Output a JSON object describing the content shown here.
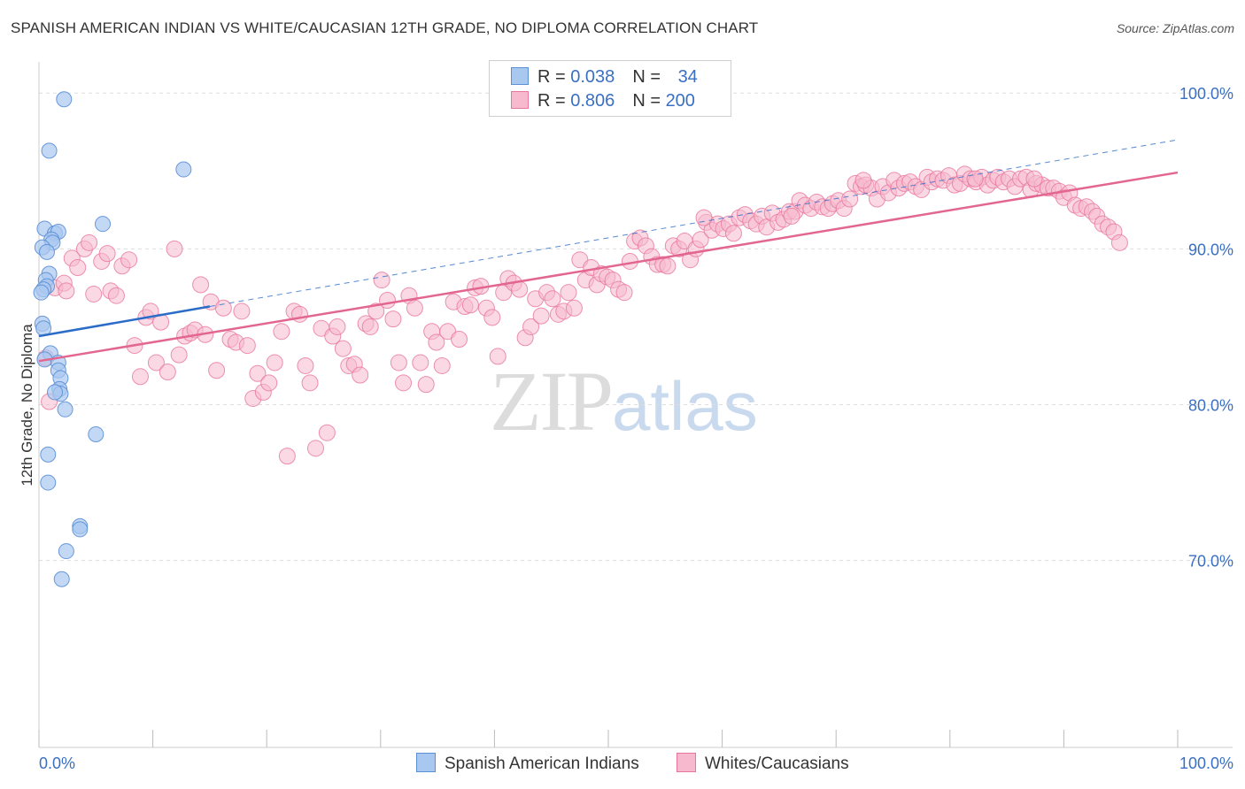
{
  "header": {
    "title": "SPANISH AMERICAN INDIAN VS WHITE/CAUCASIAN 12TH GRADE, NO DIPLOMA CORRELATION CHART",
    "source": "Source: ZipAtlas.com"
  },
  "legend": {
    "rows": [
      {
        "r_label": "R = ",
        "r_value": "0.038",
        "n_label": "N = ",
        "n_value": "34"
      },
      {
        "r_label": "R = ",
        "r_value": "0.806",
        "n_label": "N = ",
        "n_value": "200"
      }
    ],
    "bottom": [
      "Spanish American Indians",
      "Whites/Caucasians"
    ]
  },
  "watermark": {
    "zip": "ZIP",
    "atlas": "atlas"
  },
  "colors": {
    "blue_fill": "#a9c8ef",
    "blue_stroke": "#5b8fd6",
    "blue_line": "#2a6cc8",
    "pink_fill": "#f6b9cd",
    "pink_stroke": "#e8769b",
    "pink_line": "#e2668f",
    "grid": "#dddddd",
    "axis_label": "#3a6fc4"
  },
  "chart_data": {
    "type": "scatter",
    "ylabel": "12th Grade, No Diploma",
    "xlabel": "",
    "xlim": [
      0,
      100
    ],
    "ylim": [
      58,
      102
    ],
    "x_tick_labels": [
      "0.0%",
      "100.0%"
    ],
    "y_ticks": [
      70,
      80,
      90,
      100
    ],
    "y_tick_labels": [
      "70.0%",
      "80.0%",
      "90.0%",
      "100.0%"
    ],
    "grid": true,
    "series": [
      {
        "name": "Spanish American Indians",
        "r": 0.038,
        "n": 34,
        "trend": {
          "x": [
            0,
            15
          ],
          "y": [
            84.4,
            86.3
          ]
        },
        "trend_dashed": {
          "x": [
            15,
            100
          ],
          "y": [
            86.3,
            97.0
          ]
        },
        "points": [
          [
            2.2,
            99.6
          ],
          [
            0.9,
            96.3
          ],
          [
            12.7,
            95.1
          ],
          [
            5.6,
            91.6
          ],
          [
            0.5,
            91.3
          ],
          [
            1.4,
            91.0
          ],
          [
            1.7,
            91.1
          ],
          [
            1.1,
            90.6
          ],
          [
            1.2,
            90.4
          ],
          [
            0.3,
            90.1
          ],
          [
            0.7,
            89.8
          ],
          [
            0.9,
            88.4
          ],
          [
            0.6,
            88.0
          ],
          [
            0.7,
            87.6
          ],
          [
            0.4,
            87.4
          ],
          [
            0.2,
            87.2
          ],
          [
            0.3,
            85.2
          ],
          [
            0.4,
            84.9
          ],
          [
            1.0,
            83.3
          ],
          [
            0.5,
            82.9
          ],
          [
            1.7,
            82.7
          ],
          [
            1.7,
            82.2
          ],
          [
            1.9,
            81.7
          ],
          [
            1.8,
            81.0
          ],
          [
            1.9,
            80.7
          ],
          [
            1.4,
            80.8
          ],
          [
            2.3,
            79.7
          ],
          [
            5.0,
            78.1
          ],
          [
            0.8,
            76.8
          ],
          [
            0.8,
            75.0
          ],
          [
            3.6,
            72.2
          ],
          [
            3.6,
            72.0
          ],
          [
            2.4,
            70.6
          ],
          [
            2.0,
            68.8
          ]
        ]
      },
      {
        "name": "Whites/Caucasians",
        "r": 0.806,
        "n": 200,
        "trend": {
          "x": [
            0,
            100
          ],
          "y": [
            82.8,
            94.9
          ]
        },
        "points": [
          [
            0.6,
            83.0
          ],
          [
            0.9,
            80.2
          ],
          [
            1.4,
            87.5
          ],
          [
            2.2,
            87.8
          ],
          [
            2.4,
            87.3
          ],
          [
            2.9,
            89.4
          ],
          [
            3.4,
            88.8
          ],
          [
            4.0,
            90.0
          ],
          [
            4.4,
            90.4
          ],
          [
            4.8,
            87.1
          ],
          [
            5.5,
            89.2
          ],
          [
            6.0,
            89.7
          ],
          [
            6.3,
            87.3
          ],
          [
            6.8,
            87.0
          ],
          [
            7.3,
            88.9
          ],
          [
            7.9,
            89.3
          ],
          [
            8.4,
            83.8
          ],
          [
            8.9,
            81.8
          ],
          [
            9.4,
            85.6
          ],
          [
            9.8,
            86.0
          ],
          [
            10.3,
            82.7
          ],
          [
            10.7,
            85.3
          ],
          [
            11.3,
            82.1
          ],
          [
            11.9,
            90.0
          ],
          [
            12.3,
            83.2
          ],
          [
            12.8,
            84.4
          ],
          [
            13.3,
            84.6
          ],
          [
            13.7,
            84.8
          ],
          [
            14.2,
            87.7
          ],
          [
            14.6,
            84.5
          ],
          [
            15.1,
            86.6
          ],
          [
            15.6,
            82.2
          ],
          [
            16.2,
            86.2
          ],
          [
            16.8,
            84.2
          ],
          [
            17.3,
            84.0
          ],
          [
            17.8,
            86.0
          ],
          [
            18.3,
            83.8
          ],
          [
            18.8,
            80.4
          ],
          [
            19.2,
            82.0
          ],
          [
            19.7,
            80.8
          ],
          [
            20.2,
            81.4
          ],
          [
            20.7,
            82.7
          ],
          [
            21.3,
            84.7
          ],
          [
            21.8,
            76.7
          ],
          [
            22.4,
            86.0
          ],
          [
            22.9,
            85.8
          ],
          [
            23.4,
            82.5
          ],
          [
            23.8,
            81.4
          ],
          [
            24.3,
            77.2
          ],
          [
            24.8,
            84.9
          ],
          [
            25.3,
            78.2
          ],
          [
            25.8,
            84.4
          ],
          [
            26.2,
            85.0
          ],
          [
            26.7,
            83.6
          ],
          [
            27.2,
            82.5
          ],
          [
            27.7,
            82.6
          ],
          [
            28.2,
            81.9
          ],
          [
            28.7,
            85.2
          ],
          [
            29.1,
            85.0
          ],
          [
            29.6,
            86.0
          ],
          [
            30.1,
            88.0
          ],
          [
            30.6,
            86.7
          ],
          [
            31.1,
            85.5
          ],
          [
            31.6,
            82.7
          ],
          [
            32.0,
            81.4
          ],
          [
            32.5,
            87.0
          ],
          [
            33.0,
            86.2
          ],
          [
            33.5,
            82.7
          ],
          [
            34.0,
            81.3
          ],
          [
            34.5,
            84.7
          ],
          [
            34.9,
            84.0
          ],
          [
            35.4,
            82.5
          ],
          [
            35.9,
            84.7
          ],
          [
            36.4,
            86.6
          ],
          [
            36.9,
            84.2
          ],
          [
            37.4,
            86.3
          ],
          [
            37.9,
            86.4
          ],
          [
            38.3,
            87.5
          ],
          [
            38.8,
            87.6
          ],
          [
            39.3,
            86.2
          ],
          [
            39.8,
            85.6
          ],
          [
            40.3,
            83.1
          ],
          [
            40.8,
            87.2
          ],
          [
            41.2,
            88.1
          ],
          [
            41.7,
            87.8
          ],
          [
            42.2,
            87.4
          ],
          [
            42.7,
            84.3
          ],
          [
            43.2,
            85.0
          ],
          [
            43.6,
            86.8
          ],
          [
            44.1,
            85.7
          ],
          [
            44.6,
            87.2
          ],
          [
            45.1,
            86.8
          ],
          [
            45.6,
            85.8
          ],
          [
            46.1,
            86.0
          ],
          [
            46.5,
            87.2
          ],
          [
            47.0,
            86.2
          ],
          [
            47.5,
            89.3
          ],
          [
            48.0,
            88.0
          ],
          [
            48.5,
            88.8
          ],
          [
            49.0,
            87.7
          ],
          [
            49.4,
            88.4
          ],
          [
            49.9,
            88.2
          ],
          [
            50.4,
            88.0
          ],
          [
            50.9,
            87.4
          ],
          [
            51.4,
            87.2
          ],
          [
            51.9,
            89.2
          ],
          [
            52.3,
            90.5
          ],
          [
            52.8,
            90.7
          ],
          [
            53.3,
            90.2
          ],
          [
            53.8,
            89.5
          ],
          [
            54.3,
            89.0
          ],
          [
            54.8,
            89.0
          ],
          [
            55.2,
            88.9
          ],
          [
            55.7,
            90.2
          ],
          [
            56.2,
            90.0
          ],
          [
            56.7,
            90.5
          ],
          [
            57.2,
            89.3
          ],
          [
            57.7,
            90.0
          ],
          [
            58.1,
            90.6
          ],
          [
            58.6,
            91.7
          ],
          [
            59.1,
            91.2
          ],
          [
            59.6,
            91.6
          ],
          [
            60.1,
            91.3
          ],
          [
            60.6,
            91.6
          ],
          [
            61.0,
            91.0
          ],
          [
            61.5,
            92.0
          ],
          [
            62.0,
            92.2
          ],
          [
            62.5,
            91.8
          ],
          [
            63.0,
            91.6
          ],
          [
            63.5,
            92.1
          ],
          [
            63.9,
            91.4
          ],
          [
            64.4,
            92.3
          ],
          [
            64.9,
            91.7
          ],
          [
            65.4,
            91.9
          ],
          [
            65.9,
            92.4
          ],
          [
            66.4,
            92.4
          ],
          [
            66.8,
            93.1
          ],
          [
            67.3,
            92.8
          ],
          [
            67.8,
            92.6
          ],
          [
            68.3,
            93.0
          ],
          [
            68.8,
            92.7
          ],
          [
            69.3,
            92.6
          ],
          [
            69.7,
            92.9
          ],
          [
            70.2,
            93.1
          ],
          [
            70.7,
            92.6
          ],
          [
            71.2,
            93.2
          ],
          [
            71.7,
            94.2
          ],
          [
            72.2,
            94.0
          ],
          [
            72.6,
            94.1
          ],
          [
            73.1,
            93.9
          ],
          [
            73.6,
            93.2
          ],
          [
            74.1,
            94.0
          ],
          [
            74.6,
            93.6
          ],
          [
            75.1,
            94.4
          ],
          [
            75.5,
            93.9
          ],
          [
            76.0,
            94.2
          ],
          [
            76.5,
            94.3
          ],
          [
            77.0,
            94.0
          ],
          [
            77.5,
            93.8
          ],
          [
            78.0,
            94.6
          ],
          [
            78.4,
            94.3
          ],
          [
            78.9,
            94.5
          ],
          [
            79.4,
            94.4
          ],
          [
            79.9,
            94.7
          ],
          [
            80.4,
            94.1
          ],
          [
            80.9,
            94.2
          ],
          [
            81.3,
            94.8
          ],
          [
            81.8,
            94.5
          ],
          [
            82.3,
            94.3
          ],
          [
            82.8,
            94.6
          ],
          [
            83.3,
            94.1
          ],
          [
            83.8,
            94.4
          ],
          [
            84.2,
            94.6
          ],
          [
            84.7,
            94.3
          ],
          [
            85.2,
            94.5
          ],
          [
            85.7,
            94.0
          ],
          [
            86.2,
            94.5
          ],
          [
            86.7,
            94.6
          ],
          [
            87.1,
            93.8
          ],
          [
            87.6,
            94.2
          ],
          [
            88.1,
            94.1
          ],
          [
            88.6,
            93.9
          ],
          [
            89.1,
            93.9
          ],
          [
            89.6,
            93.7
          ],
          [
            90.0,
            93.3
          ],
          [
            90.5,
            93.6
          ],
          [
            91.0,
            92.8
          ],
          [
            91.5,
            92.6
          ],
          [
            92.0,
            92.7
          ],
          [
            92.5,
            92.4
          ],
          [
            92.9,
            92.1
          ],
          [
            93.4,
            91.6
          ],
          [
            93.9,
            91.4
          ],
          [
            94.4,
            91.1
          ],
          [
            94.9,
            90.4
          ],
          [
            58.4,
            92.0
          ],
          [
            66.1,
            92.1
          ],
          [
            72.4,
            94.4
          ],
          [
            82.2,
            94.5
          ],
          [
            87.4,
            94.5
          ]
        ]
      }
    ]
  }
}
